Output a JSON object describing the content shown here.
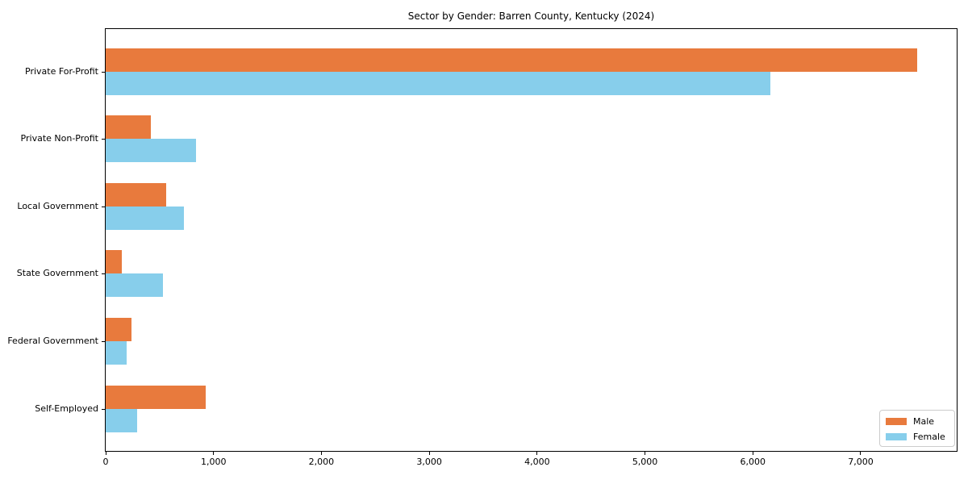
{
  "chart_data": {
    "type": "bar",
    "orientation": "horizontal",
    "title": "Sector by Gender: Barren County, Kentucky (2024)",
    "xlabel": "",
    "ylabel": "",
    "categories": [
      "Private For-Profit",
      "Private Non-Profit",
      "Local Government",
      "State Government",
      "Federal Government",
      "Self-Employed"
    ],
    "series": [
      {
        "name": "Male",
        "color": "#e87a3d",
        "values": [
          7520,
          420,
          560,
          150,
          240,
          930
        ]
      },
      {
        "name": "Female",
        "color": "#87ceeb",
        "values": [
          6160,
          835,
          725,
          530,
          195,
          290
        ]
      }
    ],
    "xlim": [
      0,
      7890
    ],
    "x_ticks": [
      0,
      1000,
      2000,
      3000,
      4000,
      5000,
      6000,
      7000
    ],
    "x_tick_labels": [
      "0",
      "1,000",
      "2,000",
      "3,000",
      "4,000",
      "5,000",
      "6,000",
      "7,000"
    ],
    "legend": {
      "position": "lower right",
      "entries": [
        "Male",
        "Female"
      ]
    },
    "grid": false
  },
  "colors": {
    "male": "#e87a3d",
    "female": "#87ceeb",
    "spine": "#000000",
    "legend_border": "#cccccc",
    "background": "#ffffff"
  }
}
